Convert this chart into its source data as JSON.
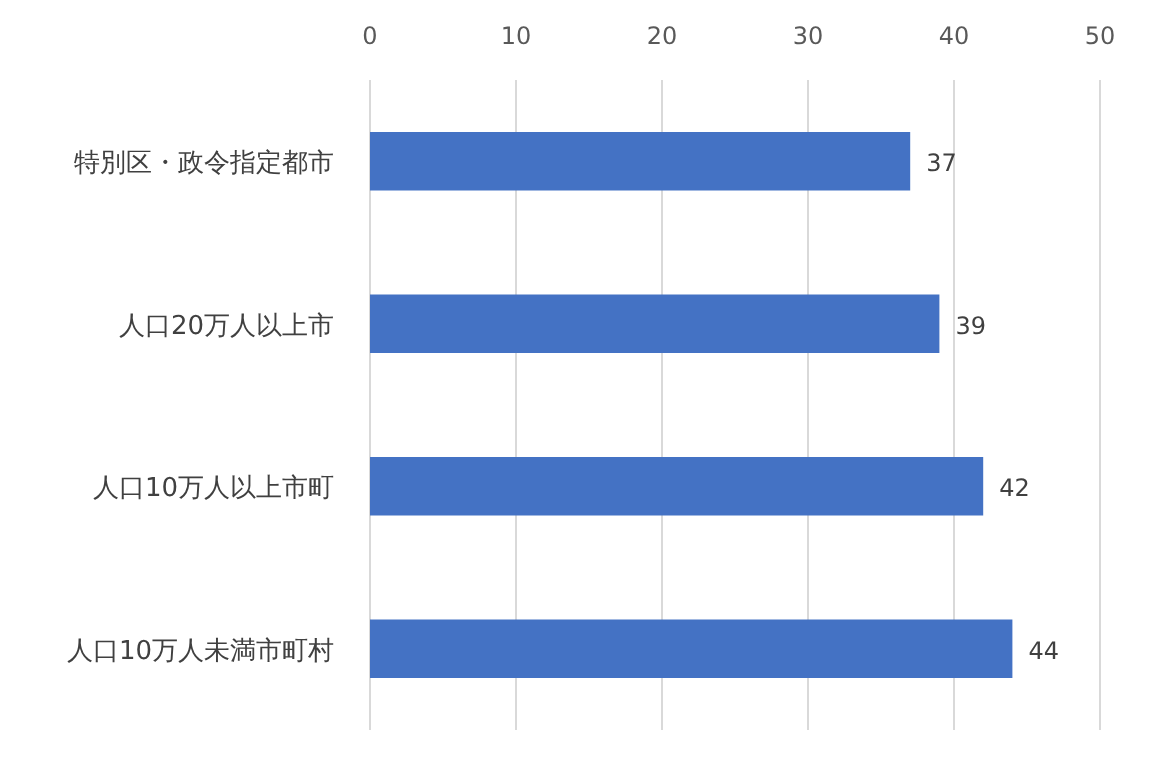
{
  "chart_data": {
    "type": "bar",
    "orientation": "horizontal",
    "categories": [
      "特別区・政令指定都市",
      "人口20万人以上市",
      "人口10万人以上市町",
      "人口10万人未満市町村"
    ],
    "values": [
      37,
      39,
      42,
      44
    ],
    "color": "#4472c4",
    "xlim": [
      0,
      50
    ],
    "xticks": [
      0,
      10,
      20,
      30,
      40,
      50
    ],
    "grid": "x",
    "data_labels": true
  }
}
